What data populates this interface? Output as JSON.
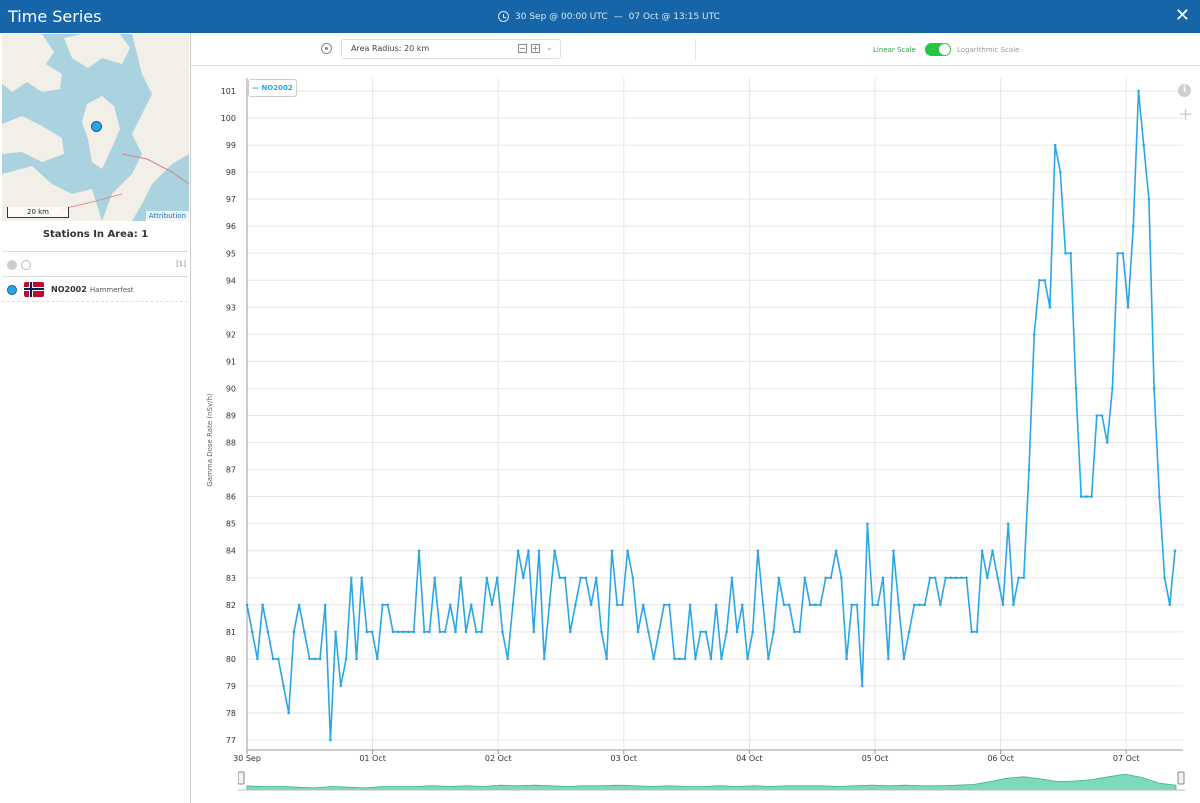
{
  "window": {
    "title": "Time Series",
    "time_start": "30 Sep @ 00:00 UTC",
    "time_separator": "—",
    "time_end": "07 Oct @ 13:15 UTC",
    "close_icon": "close-icon",
    "header_color": "#1565a8"
  },
  "map": {
    "scale_label": "20 km",
    "attribution": "Attribution"
  },
  "sidebar": {
    "stations_title": "Stations In Area: 1",
    "selection_count": "[1]",
    "stations": [
      {
        "id": "NO2002",
        "name": "Hammerfest",
        "flag": "norway-flag-icon"
      }
    ]
  },
  "toolbar": {
    "radius_label": "Area Radius: 20 km",
    "minus": "−",
    "plus": "+",
    "chevron": "⌄",
    "linear_label": "Linear Scale",
    "log_label": "Logarithmic Scale",
    "scale_mode": "linear"
  },
  "chart": {
    "info_icon": "i",
    "zoom_icon": "+"
  },
  "chart_data": {
    "type": "line",
    "xlabel": "",
    "ylabel": "Gamma Dose Rate (nSv/h)",
    "ylim": [
      77,
      101
    ],
    "yticks": [
      77,
      78,
      79,
      80,
      81,
      82,
      83,
      84,
      85,
      86,
      87,
      88,
      89,
      90,
      91,
      92,
      93,
      94,
      95,
      96,
      97,
      98,
      99,
      100,
      101
    ],
    "xticks": [
      "30 Sep",
      "01 Oct",
      "02 Oct",
      "03 Oct",
      "04 Oct",
      "05 Oct",
      "06 Oct",
      "07 Oct"
    ],
    "grid": true,
    "legend": "top-left",
    "series": [
      {
        "name": "NO2002",
        "color": "#29a6e8",
        "values": [
          82,
          81,
          80,
          82,
          81,
          80,
          80,
          79,
          78,
          81,
          82,
          81,
          80,
          80,
          80,
          82,
          77,
          81,
          79,
          80,
          83,
          80,
          83,
          81,
          81,
          80,
          82,
          82,
          81,
          81,
          81,
          81,
          81,
          84,
          81,
          81,
          83,
          81,
          81,
          82,
          81,
          83,
          81,
          82,
          81,
          81,
          83,
          82,
          83,
          81,
          80,
          82,
          84,
          83,
          84,
          81,
          84,
          80,
          82,
          84,
          83,
          83,
          81,
          82,
          83,
          83,
          82,
          83,
          81,
          80,
          84,
          82,
          82,
          84,
          83,
          81,
          82,
          81,
          80,
          81,
          82,
          82,
          80,
          80,
          80,
          82,
          80,
          81,
          81,
          80,
          82,
          80,
          81,
          83,
          81,
          82,
          80,
          81,
          84,
          82,
          80,
          81,
          83,
          82,
          82,
          81,
          81,
          83,
          82,
          82,
          82,
          83,
          83,
          84,
          83,
          80,
          82,
          82,
          79,
          85,
          82,
          82,
          83,
          80,
          84,
          82,
          80,
          81,
          82,
          82,
          82,
          83,
          83,
          82,
          83,
          83,
          83,
          83,
          83,
          81,
          81,
          84,
          83,
          84,
          83,
          82,
          85,
          82,
          83,
          83,
          87,
          92,
          94,
          94,
          93,
          99,
          98,
          95,
          95,
          90,
          86,
          86,
          86,
          89,
          89,
          88,
          90,
          95,
          95,
          93,
          96,
          101,
          99,
          97,
          90,
          86,
          83,
          82,
          84
        ]
      }
    ]
  },
  "navigator_data": {
    "values": [
      82,
      81,
      81,
      80,
      79,
      81,
      80,
      79,
      81,
      81,
      81,
      82,
      81,
      82,
      81,
      83,
      82,
      83,
      82,
      81,
      82,
      82,
      83,
      82,
      81,
      82,
      81,
      81,
      82,
      81,
      82,
      81,
      82,
      82,
      82,
      81,
      82,
      83,
      82,
      83,
      82,
      82,
      83,
      84,
      88,
      93,
      95,
      92,
      88,
      89,
      91,
      95,
      99,
      94,
      86,
      83
    ]
  }
}
